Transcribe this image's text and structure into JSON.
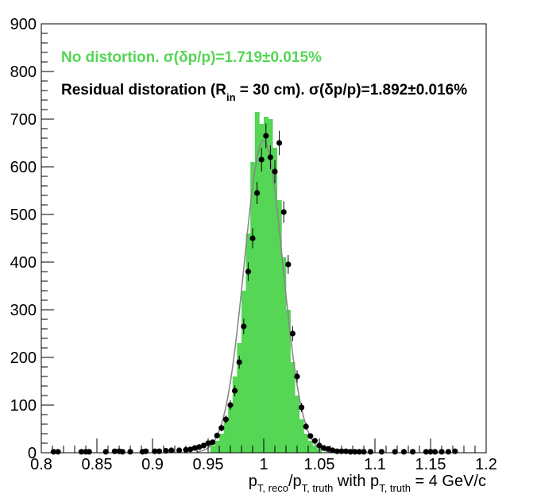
{
  "chart_data": {
    "type": "bar",
    "xlabel": {
      "p": "p",
      "sub_reco": "T, reco",
      "slash": "/p",
      "sub_truth": "T, truth",
      "mid": " with p",
      "sub_truth2": "T, truth",
      "tail": " = 4 GeV/c"
    },
    "ylabel": "",
    "xlim": [
      0.8,
      1.2
    ],
    "ylim": [
      0,
      900
    ],
    "x_ticks": [
      0.8,
      0.85,
      0.9,
      0.95,
      1.0,
      1.05,
      1.1,
      1.15,
      1.2
    ],
    "x_tick_labels": [
      "0.8",
      "0.85",
      "0.9",
      "0.95",
      "1",
      "1.05",
      "1.1",
      "1.15",
      "1.2"
    ],
    "y_ticks": [
      0,
      100,
      200,
      300,
      400,
      500,
      600,
      700,
      800,
      900
    ],
    "y_tick_labels": [
      "0",
      "100",
      "200",
      "300",
      "400",
      "500",
      "600",
      "700",
      "800",
      "900"
    ],
    "legend": {
      "green": {
        "a": "No distortion.  σ(δp/p)=1.719",
        "pm": "±",
        "b": "0.015%",
        "color": "#55d655"
      },
      "black": {
        "a": "Residual distoration (R",
        "sub": "in",
        "b": " = 30 cm).  σ(δp/p)=1.892",
        "pm": "±",
        "c": "0.016%",
        "color": "#000000"
      }
    },
    "series": [
      {
        "kind": "histogram",
        "color": "#55d655",
        "bin_width": 0.004,
        "x": [
          0.954,
          0.958,
          0.962,
          0.966,
          0.97,
          0.974,
          0.978,
          0.982,
          0.986,
          0.99,
          0.994,
          0.998,
          1.002,
          1.006,
          1.01,
          1.014,
          1.018,
          1.022,
          1.026,
          1.03,
          1.034,
          1.038,
          1.042,
          1.046,
          1.05
        ],
        "values": [
          15,
          25,
          40,
          65,
          95,
          160,
          230,
          340,
          460,
          610,
          715,
          690,
          705,
          700,
          640,
          530,
          410,
          300,
          190,
          120,
          70,
          40,
          25,
          15,
          8
        ]
      },
      {
        "kind": "points",
        "color": "#000000",
        "x": [
          0.811,
          0.815,
          0.836,
          0.84,
          0.843,
          0.858,
          0.866,
          0.87,
          0.873,
          0.88,
          0.891,
          0.894,
          0.902,
          0.906,
          0.912,
          0.917,
          0.924,
          0.93,
          0.934,
          0.938,
          0.942,
          0.946,
          0.95,
          0.954,
          0.958,
          0.962,
          0.966,
          0.97,
          0.974,
          0.978,
          0.982,
          0.986,
          0.99,
          0.994,
          0.998,
          1.002,
          1.006,
          1.01,
          1.014,
          1.018,
          1.022,
          1.026,
          1.03,
          1.034,
          1.038,
          1.042,
          1.046,
          1.05,
          1.054,
          1.058,
          1.062,
          1.066,
          1.07,
          1.074,
          1.078,
          1.082,
          1.086,
          1.09,
          1.096,
          1.106,
          1.118,
          1.126,
          1.134,
          1.146,
          1.15,
          1.154,
          1.16,
          1.166,
          1.172
        ],
        "values": [
          2,
          2,
          2,
          2,
          2,
          2,
          3,
          3,
          2,
          2,
          2,
          3,
          3,
          3,
          4,
          5,
          5,
          6,
          7,
          10,
          12,
          15,
          20,
          22,
          36,
          52,
          70,
          100,
          130,
          190,
          265,
          380,
          450,
          545,
          615,
          665,
          620,
          590,
          650,
          505,
          395,
          250,
          160,
          95,
          55,
          35,
          25,
          15,
          10,
          8,
          5,
          3,
          3,
          3,
          2,
          2,
          2,
          2,
          2,
          2,
          2,
          2,
          2,
          2,
          2,
          2,
          2,
          2,
          3
        ]
      },
      {
        "kind": "fit",
        "color": "#888888",
        "mean": 0.9998,
        "sigma": 0.0173,
        "amplitude": 655
      }
    ]
  }
}
